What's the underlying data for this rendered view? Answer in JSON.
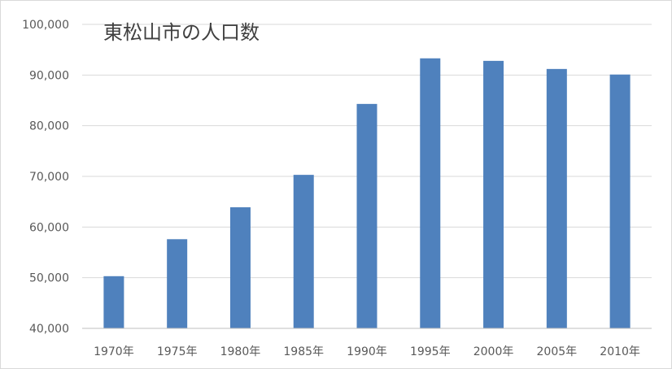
{
  "chart_data": {
    "type": "bar",
    "title": "東松山市の人口数",
    "categories": [
      "1970年",
      "1975年",
      "1980年",
      "1985年",
      "1990年",
      "1995年",
      "2000年",
      "2005年",
      "2010年"
    ],
    "values": [
      50300,
      57600,
      63900,
      70300,
      84300,
      93300,
      92800,
      91200,
      90100
    ],
    "ylim": [
      40000,
      100000
    ],
    "yticks": [
      40000,
      50000,
      60000,
      70000,
      80000,
      90000,
      100000
    ],
    "ytick_labels": [
      "40,000",
      "50,000",
      "60,000",
      "70,000",
      "80,000",
      "90,000",
      "100,000"
    ],
    "grid": true,
    "legend": "none",
    "colors": {
      "bar": "#4f81bd",
      "grid": "#d9d9d9",
      "axis": "#bfbfbf",
      "text": "#595959",
      "title": "#404040"
    }
  }
}
